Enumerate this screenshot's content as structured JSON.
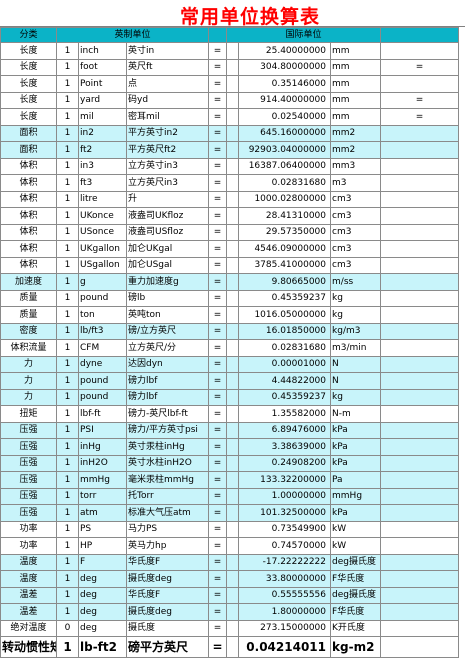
{
  "title": "常用单位换算表",
  "header": {
    "category": "分类",
    "imperial": "英制单位",
    "intl": "国际单位"
  },
  "rows": [
    {
      "cat": "长度",
      "n": "1",
      "unit": "inch",
      "cn": "英寸in",
      "eq": "=",
      "val": "25.40000000",
      "si": "mm",
      "x": "",
      "row_style": "white"
    },
    {
      "cat": "长度",
      "n": "1",
      "unit": "foot",
      "cn": "英尺ft",
      "eq": "=",
      "val": "304.80000000",
      "si": "mm",
      "x": "=",
      "row_style": "white"
    },
    {
      "cat": "长度",
      "n": "1",
      "unit": "Point",
      "cn": "点",
      "eq": "=",
      "val": "0.35146000",
      "si": "mm",
      "x": "",
      "row_style": "white"
    },
    {
      "cat": "长度",
      "n": "1",
      "unit": "yard",
      "cn": "码yd",
      "eq": "=",
      "val": "914.40000000",
      "si": "mm",
      "x": "=",
      "row_style": "white"
    },
    {
      "cat": "长度",
      "n": "1",
      "unit": "mil",
      "cn": "密耳mil",
      "eq": "=",
      "val": "0.02540000",
      "si": "mm",
      "x": "=",
      "row_style": "white"
    },
    {
      "cat": "面积",
      "n": "1",
      "unit": "in2",
      "cn": "平方英寸in2",
      "eq": "=",
      "val": "645.16000000",
      "si": "mm2",
      "x": "",
      "row_style": "cyan"
    },
    {
      "cat": "面积",
      "n": "1",
      "unit": "ft2",
      "cn": "平方英尺ft2",
      "eq": "=",
      "val": "92903.04000000",
      "si": "mm2",
      "x": "",
      "row_style": "cyan"
    },
    {
      "cat": "体积",
      "n": "1",
      "unit": "in3",
      "cn": "立方英寸in3",
      "eq": "=",
      "val": "16387.06400000",
      "si": "mm3",
      "x": "",
      "row_style": "white"
    },
    {
      "cat": "体积",
      "n": "1",
      "unit": "ft3",
      "cn": "立方英尺in3",
      "eq": "=",
      "val": "0.02831680",
      "si": "m3",
      "x": "",
      "row_style": "white"
    },
    {
      "cat": "体积",
      "n": "1",
      "unit": "litre",
      "cn": "升",
      "eq": "=",
      "val": "1000.02800000",
      "si": "cm3",
      "x": "",
      "row_style": "white"
    },
    {
      "cat": "体积",
      "n": "1",
      "unit": "UKonce",
      "cn": "液盎司UKfloz",
      "eq": "=",
      "val": "28.41310000",
      "si": "cm3",
      "x": "",
      "row_style": "white"
    },
    {
      "cat": "体积",
      "n": "1",
      "unit": "USonce",
      "cn": "液盎司USfloz",
      "eq": "=",
      "val": "29.57350000",
      "si": "cm3",
      "x": "",
      "row_style": "white"
    },
    {
      "cat": "体积",
      "n": "1",
      "unit": "UKgallon",
      "cn": "加仑UKgal",
      "eq": "=",
      "val": "4546.09000000",
      "si": "cm3",
      "x": "",
      "row_style": "white"
    },
    {
      "cat": "体积",
      "n": "1",
      "unit": "USgallon",
      "cn": "加仑USgal",
      "eq": "=",
      "val": "3785.41000000",
      "si": "cm3",
      "x": "",
      "row_style": "white"
    },
    {
      "cat": "加速度",
      "n": "1",
      "unit": "g",
      "cn": "重力加速度g",
      "eq": "=",
      "val": "9.80665000",
      "si": "m/ss",
      "x": "",
      "row_style": "cyan"
    },
    {
      "cat": "质量",
      "n": "1",
      "unit": "pound",
      "cn": "磅lb",
      "eq": "=",
      "val": "0.45359237",
      "si": "kg",
      "x": "",
      "row_style": "white"
    },
    {
      "cat": "质量",
      "n": "1",
      "unit": "ton",
      "cn": "英吨ton",
      "eq": "=",
      "val": "1016.05000000",
      "si": "kg",
      "x": "",
      "row_style": "white"
    },
    {
      "cat": "密度",
      "n": "1",
      "unit": "lb/ft3",
      "cn": "磅/立方英尺",
      "eq": "=",
      "val": "16.01850000",
      "si": "kg/m3",
      "x": "",
      "row_style": "cyan"
    },
    {
      "cat": "体积流量",
      "n": "1",
      "unit": "CFM",
      "cn": "立方英尺/分",
      "eq": "=",
      "val": "0.02831680",
      "si": "m3/min",
      "x": "",
      "row_style": "white"
    },
    {
      "cat": "力",
      "n": "1",
      "unit": "dyne",
      "cn": "达因dyn",
      "eq": "=",
      "val": "0.00001000",
      "si": "N",
      "x": "",
      "row_style": "cyan"
    },
    {
      "cat": "力",
      "n": "1",
      "unit": "pound",
      "cn": "磅力lbf",
      "eq": "=",
      "val": "4.44822000",
      "si": "N",
      "x": "",
      "row_style": "cyan"
    },
    {
      "cat": "力",
      "n": "1",
      "unit": "pound",
      "cn": "磅力lbf",
      "eq": "=",
      "val": "0.45359237",
      "si": "kg",
      "x": "",
      "row_style": "cyan"
    },
    {
      "cat": "扭矩",
      "n": "1",
      "unit": "lbf-ft",
      "cn": "磅力-英尺lbf-ft",
      "eq": "=",
      "val": "1.35582000",
      "si": "N-m",
      "x": "",
      "row_style": "white"
    },
    {
      "cat": "压强",
      "n": "1",
      "unit": "PSI",
      "cn": "磅力/平方英寸psi",
      "eq": "=",
      "val": "6.89476000",
      "si": "kPa",
      "x": "",
      "row_style": "cyan"
    },
    {
      "cat": "压强",
      "n": "1",
      "unit": "inHg",
      "cn": "英寸汞柱inHg",
      "eq": "=",
      "val": "3.38639000",
      "si": "kPa",
      "x": "",
      "row_style": "cyan"
    },
    {
      "cat": "压强",
      "n": "1",
      "unit": "inH2O",
      "cn": "英寸水柱inH2O",
      "eq": "=",
      "val": "0.24908200",
      "si": "kPa",
      "x": "",
      "row_style": "cyan"
    },
    {
      "cat": "压强",
      "n": "1",
      "unit": "mmHg",
      "cn": "毫米汞柱mmHg",
      "eq": "=",
      "val": "133.32200000",
      "si": "Pa",
      "x": "",
      "row_style": "cyan"
    },
    {
      "cat": "压强",
      "n": "1",
      "unit": "torr",
      "cn": "托Torr",
      "eq": "=",
      "val": "1.00000000",
      "si": "mmHg",
      "x": "",
      "row_style": "cyan"
    },
    {
      "cat": "压强",
      "n": "1",
      "unit": "atm",
      "cn": "标准大气压atm",
      "eq": "=",
      "val": "101.32500000",
      "si": "kPa",
      "x": "",
      "row_style": "cyan"
    },
    {
      "cat": "功率",
      "n": "1",
      "unit": "PS",
      "cn": "马力PS",
      "eq": "=",
      "val": "0.73549900",
      "si": "kW",
      "x": "",
      "row_style": "white"
    },
    {
      "cat": "功率",
      "n": "1",
      "unit": "HP",
      "cn": "英马力hp",
      "eq": "=",
      "val": "0.74570000",
      "si": "kW",
      "x": "",
      "row_style": "white"
    },
    {
      "cat": "温度",
      "n": "1",
      "unit": "F",
      "cn": "华氏度F",
      "eq": "=",
      "val": "-17.22222222",
      "si": "deg摄氏度",
      "x": "",
      "row_style": "cyan"
    },
    {
      "cat": "温度",
      "n": "1",
      "unit": "deg",
      "cn": "摄氏度deg",
      "eq": "=",
      "val": "33.80000000",
      "si": "F华氏度",
      "x": "",
      "row_style": "cyan"
    },
    {
      "cat": "温差",
      "n": "1",
      "unit": "deg",
      "cn": "华氏度F",
      "eq": "=",
      "val": "0.55555556",
      "si": "deg摄氏度",
      "x": "",
      "row_style": "cyan"
    },
    {
      "cat": "温差",
      "n": "1",
      "unit": "deg",
      "cn": "摄氏度deg",
      "eq": "=",
      "val": "1.80000000",
      "si": "F华氏度",
      "x": "",
      "row_style": "cyan"
    },
    {
      "cat": "绝对温度",
      "n": "0",
      "unit": "deg",
      "cn": "摄氏度",
      "eq": "=",
      "val": "273.15000000",
      "si": "K开氏度",
      "x": "",
      "row_style": "white"
    },
    {
      "cat": "转动惯性矩",
      "n": "1",
      "unit": "lb-ft2",
      "cn": "磅平方英尺",
      "eq": "=",
      "val": "0.04214011",
      "si": "kg-m2",
      "x": "",
      "row_style": "big"
    }
  ]
}
